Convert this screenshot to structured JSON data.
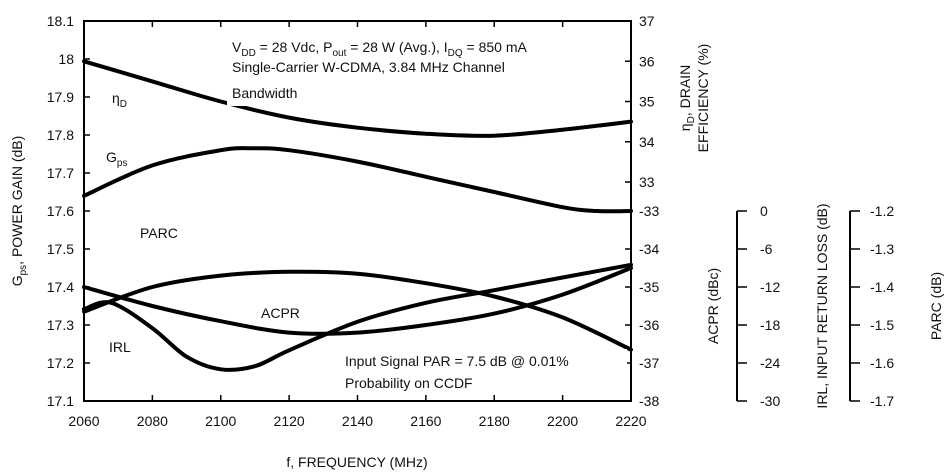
{
  "chart_data": {
    "type": "line",
    "x_axis": {
      "label": "f, FREQUENCY (MHz)",
      "min": 2060,
      "max": 2220,
      "ticks": [
        "2060",
        "2080",
        "2100",
        "2120",
        "2140",
        "2160",
        "2180",
        "2200",
        "2220"
      ]
    },
    "left_axis": {
      "label_main": "G",
      "label_sub": "ps",
      "label_rest": ", POWER GAIN (dB)",
      "min": 17.1,
      "max": 18.1,
      "ticks": [
        "18.1",
        "18",
        "17.9",
        "17.8",
        "17.7",
        "17.6",
        "17.5",
        "17.4",
        "17.3",
        "17.2",
        "17.1"
      ]
    },
    "right_axis_eff": {
      "label_line1_main": "η",
      "label_line1_sub": "D",
      "label_line1_rest": ", DRAIN",
      "label_line2": "EFFICIENCY (%)",
      "min": 33,
      "max": 37,
      "ticks": [
        "37",
        "36",
        "35",
        "34",
        "33"
      ]
    },
    "right_axis_acpr": {
      "label": "ACPR (dBc)",
      "min": -38,
      "max": -33,
      "ticks": [
        "-33",
        "-34",
        "-35",
        "-36",
        "-37",
        "-38"
      ]
    },
    "right_axis_irl": {
      "label": "IRL, INPUT RETURN LOSS (dB)",
      "min": -30,
      "max": 0,
      "ticks": [
        "0",
        "-6",
        "-12",
        "-18",
        "-24",
        "-30"
      ]
    },
    "right_axis_parc": {
      "label": "PARC (dB)",
      "min": -1.7,
      "max": -1.2,
      "ticks": [
        "-1.2",
        "-1.3",
        "-1.4",
        "-1.5",
        "-1.6",
        "-1.7"
      ]
    },
    "annotations": {
      "top_line1_parts": [
        "V",
        "DD",
        " = 28 Vdc, P",
        "out",
        " = 28 W (Avg.), I",
        "DQ",
        " = 850 mA"
      ],
      "top_line2": "Single-Carrier W-CDMA, 3.84 MHz Channel",
      "top_line3": "Bandwidth",
      "bottom_line1": "Input Signal PAR = 7.5 dB @ 0.01%",
      "bottom_line2": "Probability on CCDF"
    },
    "series": [
      {
        "name": "ηD",
        "label_main": "η",
        "label_sub": "D",
        "axis": "right_axis_eff",
        "x": [
          2060,
          2080,
          2100,
          2120,
          2140,
          2160,
          2180,
          2200,
          2220
        ],
        "y": [
          36.0,
          35.5,
          35.0,
          34.6,
          34.35,
          34.2,
          34.15,
          34.3,
          34.5
        ]
      },
      {
        "name": "Gps",
        "label_main": "G",
        "label_sub": "ps",
        "axis": "left_axis",
        "x": [
          2060,
          2080,
          2100,
          2110,
          2120,
          2140,
          2160,
          2180,
          2200,
          2210,
          2220
        ],
        "y": [
          17.64,
          17.72,
          17.76,
          17.765,
          17.76,
          17.73,
          17.69,
          17.65,
          17.61,
          17.6,
          17.6
        ]
      },
      {
        "name": "PARC",
        "label_main": "PARC",
        "axis": "right_axis_parc",
        "x": [
          2060,
          2080,
          2100,
          2120,
          2140,
          2160,
          2180,
          2200,
          2220
        ],
        "y": [
          -1.465,
          -1.4,
          -1.37,
          -1.36,
          -1.365,
          -1.39,
          -1.425,
          -1.48,
          -1.565
        ]
      },
      {
        "name": "ACPR",
        "label_main": "ACPR",
        "axis": "right_axis_acpr",
        "x": [
          2060,
          2080,
          2100,
          2120,
          2140,
          2160,
          2180,
          2200,
          2220
        ],
        "y": [
          -35.0,
          -35.5,
          -35.9,
          -36.2,
          -36.2,
          -36.0,
          -35.7,
          -35.2,
          -34.5
        ]
      },
      {
        "name": "IRL",
        "label_main": "IRL",
        "axis": "right_axis_irl",
        "x": [
          2060,
          2068,
          2080,
          2090,
          2100,
          2110,
          2120,
          2140,
          2160,
          2180,
          2200,
          2220
        ],
        "y": [
          -15.5,
          -14.5,
          -18.5,
          -23.0,
          -25.0,
          -24.5,
          -22.0,
          -17.5,
          -14.5,
          -12.5,
          -10.5,
          -8.5
        ]
      }
    ]
  }
}
